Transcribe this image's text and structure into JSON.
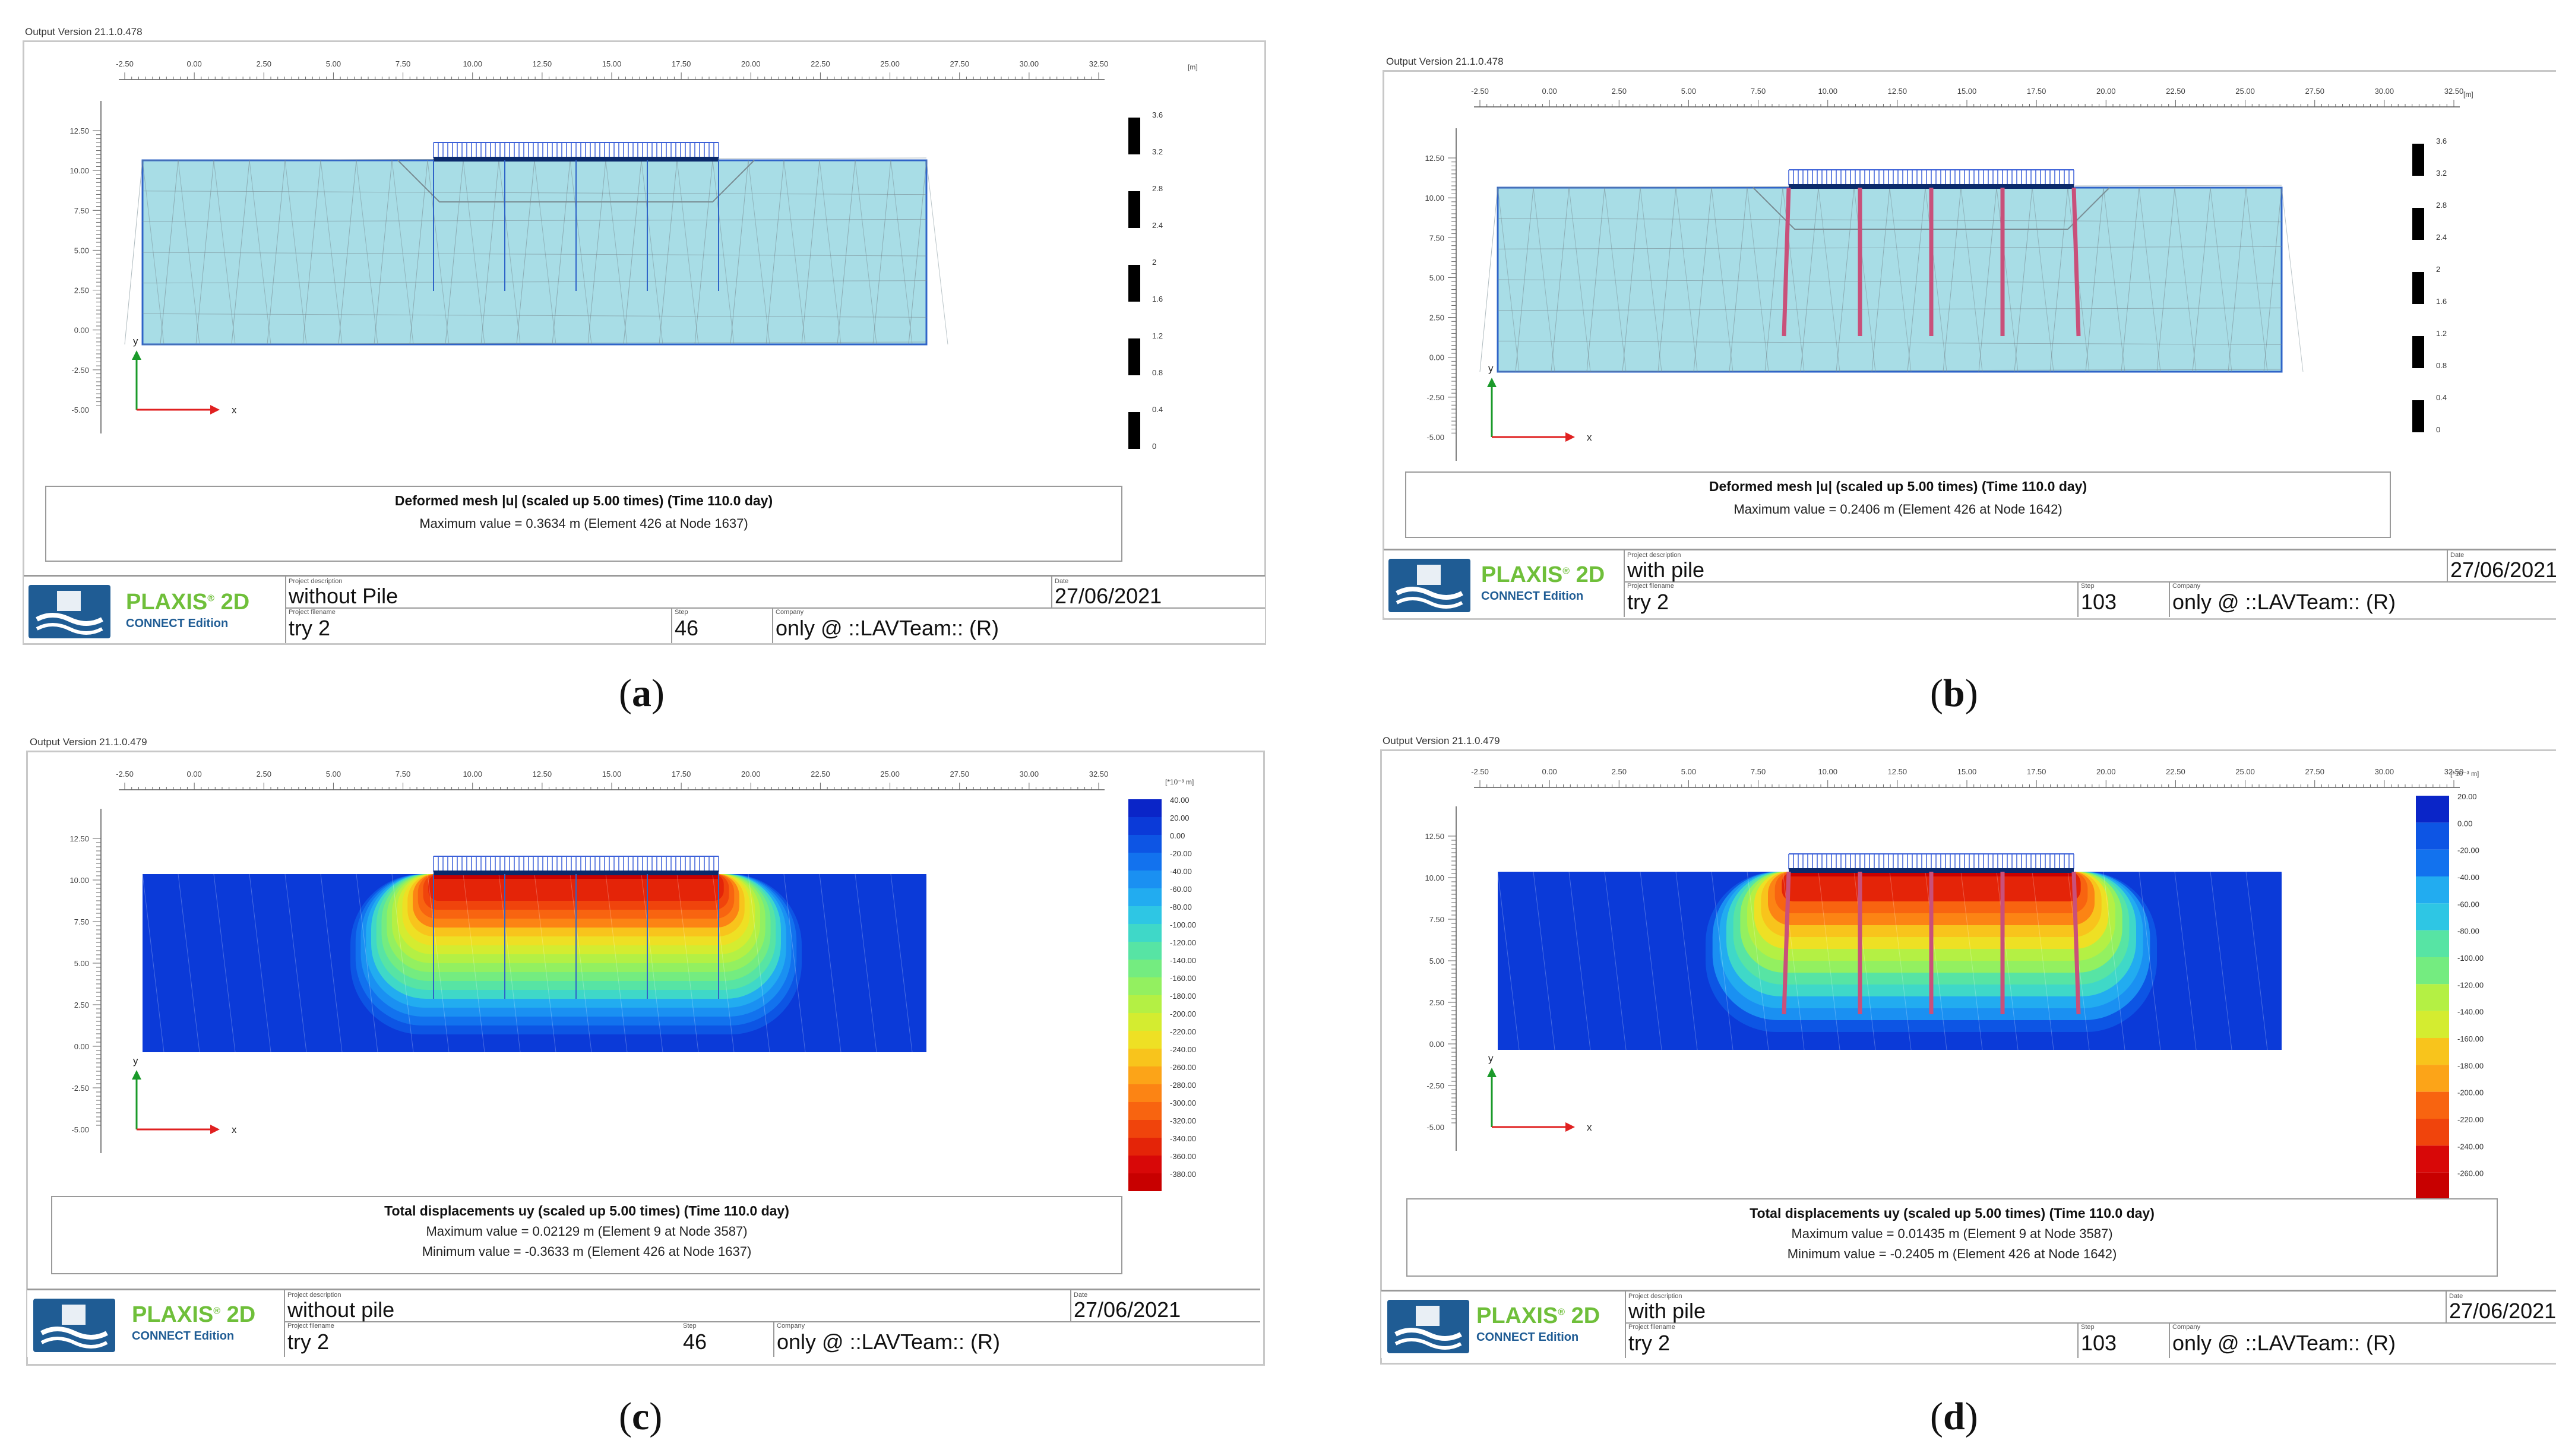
{
  "panels": [
    {
      "id": "a",
      "subcaption": "a",
      "version": "Output Version 21.1.0.478",
      "ruler_ticks": [
        "-2.50",
        "0.00",
        "2.50",
        "5.00",
        "7.50",
        "10.00",
        "12.50",
        "15.00",
        "17.50",
        "20.00",
        "22.50",
        "25.00",
        "27.50",
        "30.00",
        "32.50"
      ],
      "y_ticks": [
        "12.50",
        "10.00",
        "7.50",
        "5.00",
        "2.50",
        "0.00",
        "-2.50",
        "-5.00"
      ],
      "unit": "[m]",
      "mode": "mesh",
      "piles": false,
      "legend_values": [
        "3.6",
        "3.2",
        "2.8",
        "2.4",
        "2",
        "1.6",
        "1.2",
        "0.8",
        "0.4",
        "0"
      ],
      "caption_title": "Deformed mesh |u| (scaled up 5.00 times) (Time 110.0 day)",
      "caption_lines": [
        "Maximum value = 0.3634 m (Element 426 at Node 1637)"
      ],
      "footer": {
        "logo_text": "PLAXIS",
        "logo_sup": "®",
        "logo_2d": " 2D",
        "logo_sub": "CONNECT Edition",
        "desc_label": "Project description",
        "description": "without Pile",
        "date_label": "Date",
        "date": "27/06/2021",
        "filename_label": "Project filename",
        "filename": "try 2",
        "step_label": "Step",
        "step": "46",
        "company_label": "Company",
        "company": "only @ ::LAVTeam:: (R)"
      }
    },
    {
      "id": "b",
      "subcaption": "b",
      "version": "Output Version 21.1.0.478",
      "ruler_ticks": [
        "-2.50",
        "0.00",
        "2.50",
        "5.00",
        "7.50",
        "10.00",
        "12.50",
        "15.00",
        "17.50",
        "20.00",
        "22.50",
        "25.00",
        "27.50",
        "30.00",
        "32.50"
      ],
      "y_ticks": [
        "12.50",
        "10.00",
        "7.50",
        "5.00",
        "2.50",
        "0.00",
        "-2.50",
        "-5.00"
      ],
      "unit": "[m]",
      "mode": "mesh",
      "piles": true,
      "legend_values": [
        "3.6",
        "3.2",
        "2.8",
        "2.4",
        "2",
        "1.6",
        "1.2",
        "0.8",
        "0.4",
        "0"
      ],
      "caption_title": "Deformed mesh |u| (scaled up 5.00 times) (Time 110.0 day)",
      "caption_lines": [
        "Maximum value = 0.2406 m (Element 426 at Node 1642)"
      ],
      "footer": {
        "logo_text": "PLAXIS",
        "logo_sup": "®",
        "logo_2d": " 2D",
        "logo_sub": "CONNECT Edition",
        "desc_label": "Project description",
        "description": "with pile",
        "date_label": "Date",
        "date": "27/06/2021",
        "filename_label": "Project filename",
        "filename": "try 2",
        "step_label": "Step",
        "step": "103",
        "company_label": "Company",
        "company": "only @ ::LAVTeam:: (R)"
      }
    },
    {
      "id": "c",
      "subcaption": "c",
      "version": "Output Version 21.1.0.479",
      "ruler_ticks": [
        "-2.50",
        "0.00",
        "2.50",
        "5.00",
        "7.50",
        "10.00",
        "12.50",
        "15.00",
        "17.50",
        "20.00",
        "22.50",
        "25.00",
        "27.50",
        "30.00",
        "32.50"
      ],
      "y_ticks": [
        "12.50",
        "10.00",
        "7.50",
        "5.00",
        "2.50",
        "0.00",
        "-2.50",
        "-5.00"
      ],
      "unit": "[*10⁻³ m]",
      "mode": "contour",
      "piles": false,
      "legend_values": [
        "40.00",
        "20.00",
        "0.00",
        "-20.00",
        "-40.00",
        "-60.00",
        "-80.00",
        "-100.00",
        "-120.00",
        "-140.00",
        "-160.00",
        "-180.00",
        "-200.00",
        "-220.00",
        "-240.00",
        "-260.00",
        "-280.00",
        "-300.00",
        "-320.00",
        "-340.00",
        "-360.00",
        "-380.00"
      ],
      "caption_title": "Total displacements uy (scaled up 5.00 times) (Time 110.0 day)",
      "caption_lines": [
        "Maximum value = 0.02129 m (Element 9 at Node 3587)",
        "Minimum value = -0.3633 m (Element 426 at Node 1637)"
      ],
      "footer": {
        "logo_text": "PLAXIS",
        "logo_sup": "®",
        "logo_2d": " 2D",
        "logo_sub": "CONNECT Edition",
        "desc_label": "Project description",
        "description": "without pile",
        "date_label": "Date",
        "date": "27/06/2021",
        "filename_label": "Project filename",
        "filename": "try 2",
        "step_label": "Step",
        "step": "46",
        "company_label": "Company",
        "company": "only @ ::LAVTeam:: (R)"
      }
    },
    {
      "id": "d",
      "subcaption": "d",
      "version": "Output Version 21.1.0.479",
      "ruler_ticks": [
        "-2.50",
        "0.00",
        "2.50",
        "5.00",
        "7.50",
        "10.00",
        "12.50",
        "15.00",
        "17.50",
        "20.00",
        "22.50",
        "25.00",
        "27.50",
        "30.00",
        "32.50"
      ],
      "y_ticks": [
        "12.50",
        "10.00",
        "7.50",
        "5.00",
        "2.50",
        "0.00",
        "-2.50",
        "-5.00"
      ],
      "unit": "[*10⁻³ m]",
      "mode": "contour",
      "piles": true,
      "legend_values": [
        "20.00",
        "0.00",
        "-20.00",
        "-40.00",
        "-60.00",
        "-80.00",
        "-100.00",
        "-120.00",
        "-140.00",
        "-160.00",
        "-180.00",
        "-200.00",
        "-220.00",
        "-240.00",
        "-260.00"
      ],
      "caption_title": "Total displacements uy (scaled up 5.00 times) (Time 110.0 day)",
      "caption_lines": [
        "Maximum value = 0.01435 m (Element 9 at Node 3587)",
        "Minimum value = -0.2405 m (Element 426 at Node 1642)"
      ],
      "footer": {
        "logo_text": "PLAXIS",
        "logo_sup": "®",
        "logo_2d": " 2D",
        "logo_sub": "CONNECT Edition",
        "desc_label": "Project description",
        "description": "with pile",
        "date_label": "Date",
        "date": "27/06/2021",
        "filename_label": "Project filename",
        "filename": "try 2",
        "step_label": "Step",
        "step": "103",
        "company_label": "Company",
        "company": "only @ ::LAVTeam:: (R)"
      }
    }
  ],
  "axis_letters": {
    "x": "x",
    "y": "y"
  },
  "colors": {
    "mesh_fill": "#a8dde6",
    "mesh_border": "#2f64c8",
    "mesh_lines": "#7a8d94",
    "foundation": "#0b2a6b",
    "pile": "#c9507a",
    "axis_green": "#1a9a2a",
    "axis_red": "#e02020",
    "contour_scale": [
      "#0a25c8",
      "#0b3ad8",
      "#0d55e4",
      "#1272ee",
      "#1a90f2",
      "#22acf0",
      "#2ec6e4",
      "#3fd8c8",
      "#57e4a4",
      "#74ec80",
      "#93f060",
      "#b4f044",
      "#d4ec30",
      "#eee024",
      "#f8c41c",
      "#fca418",
      "#fc8414",
      "#f86410",
      "#f0440c",
      "#e42408",
      "#d80808",
      "#c80000"
    ]
  }
}
